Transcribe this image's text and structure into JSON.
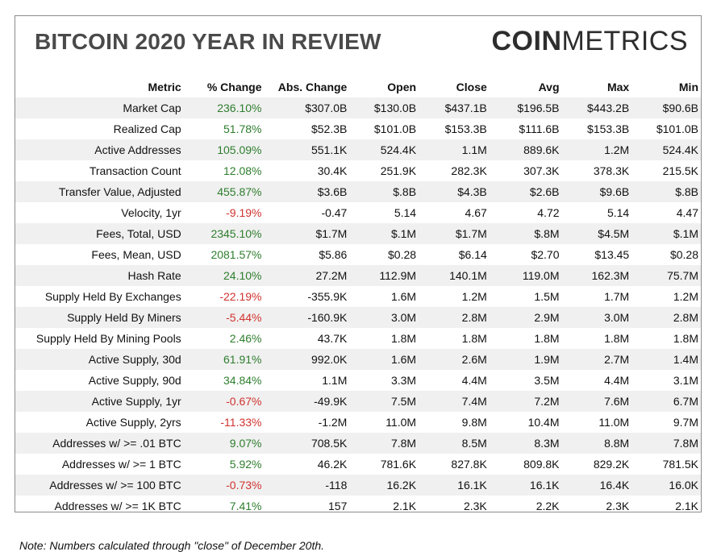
{
  "header": {
    "title": "BITCOIN 2020 YEAR IN REVIEW",
    "logo_bold": "COIN",
    "logo_light": "METRICS"
  },
  "chart_data": {
    "type": "table",
    "title": "BITCOIN 2020 YEAR IN REVIEW",
    "columns": [
      "Metric",
      "% Change",
      "Abs. Change",
      "Open",
      "Close",
      "Avg",
      "Max",
      "Min"
    ],
    "rows": [
      [
        "Market Cap",
        "236.10%",
        "$307.0B",
        "$130.0B",
        "$437.1B",
        "$196.5B",
        "$443.2B",
        "$90.6B"
      ],
      [
        "Realized Cap",
        "51.78%",
        "$52.3B",
        "$101.0B",
        "$153.3B",
        "$111.6B",
        "$153.3B",
        "$101.0B"
      ],
      [
        "Active Addresses",
        "105.09%",
        "551.1K",
        "524.4K",
        "1.1M",
        "889.6K",
        "1.2M",
        "524.4K"
      ],
      [
        "Transaction Count",
        "12.08%",
        "30.4K",
        "251.9K",
        "282.3K",
        "307.3K",
        "378.3K",
        "215.5K"
      ],
      [
        "Transfer Value, Adjusted",
        "455.87%",
        "$3.6B",
        "$.8B",
        "$4.3B",
        "$2.6B",
        "$9.6B",
        "$.8B"
      ],
      [
        "Velocity, 1yr",
        "-9.19%",
        "-0.47",
        "5.14",
        "4.67",
        "4.72",
        "5.14",
        "4.47"
      ],
      [
        "Fees, Total, USD",
        "2345.10%",
        "$1.7M",
        "$.1M",
        "$1.7M",
        "$.8M",
        "$4.5M",
        "$.1M"
      ],
      [
        "Fees, Mean, USD",
        "2081.57%",
        "$5.86",
        "$0.28",
        "$6.14",
        "$2.70",
        "$13.45",
        "$0.28"
      ],
      [
        "Hash Rate",
        "24.10%",
        "27.2M",
        "112.9M",
        "140.1M",
        "119.0M",
        "162.3M",
        "75.7M"
      ],
      [
        "Supply Held By Exchanges",
        "-22.19%",
        "-355.9K",
        "1.6M",
        "1.2M",
        "1.5M",
        "1.7M",
        "1.2M"
      ],
      [
        "Supply Held By Miners",
        "-5.44%",
        "-160.9K",
        "3.0M",
        "2.8M",
        "2.9M",
        "3.0M",
        "2.8M"
      ],
      [
        "Supply Held By Mining Pools",
        "2.46%",
        "43.7K",
        "1.8M",
        "1.8M",
        "1.8M",
        "1.8M",
        "1.8M"
      ],
      [
        "Active Supply, 30d",
        "61.91%",
        "992.0K",
        "1.6M",
        "2.6M",
        "1.9M",
        "2.7M",
        "1.4M"
      ],
      [
        "Active Supply, 90d",
        "34.84%",
        "1.1M",
        "3.3M",
        "4.4M",
        "3.5M",
        "4.4M",
        "3.1M"
      ],
      [
        "Active Supply, 1yr",
        "-0.67%",
        "-49.9K",
        "7.5M",
        "7.4M",
        "7.2M",
        "7.6M",
        "6.7M"
      ],
      [
        "Active Supply, 2yrs",
        "-11.33%",
        "-1.2M",
        "11.0M",
        "9.8M",
        "10.4M",
        "11.0M",
        "9.7M"
      ],
      [
        "Addresses w/ >= .01 BTC",
        "9.07%",
        "708.5K",
        "7.8M",
        "8.5M",
        "8.3M",
        "8.8M",
        "7.8M"
      ],
      [
        "Addresses w/ >= 1 BTC",
        "5.92%",
        "46.2K",
        "781.6K",
        "827.8K",
        "809.8K",
        "829.2K",
        "781.5K"
      ],
      [
        "Addresses w/ >= 100 BTC",
        "-0.73%",
        "-118",
        "16.2K",
        "16.1K",
        "16.1K",
        "16.4K",
        "16.0K"
      ],
      [
        "Addresses w/ >= 1K BTC",
        "7.41%",
        "157",
        "2.1K",
        "2.3K",
        "2.2K",
        "2.3K",
        "2.1K"
      ]
    ],
    "colors": {
      "positive": "#2e7d2e",
      "negative": "#d0332f",
      "stripe": "#f0f0f0"
    }
  },
  "footer": {
    "note": "Note: Numbers calculated through \"close\" of December 20th."
  }
}
